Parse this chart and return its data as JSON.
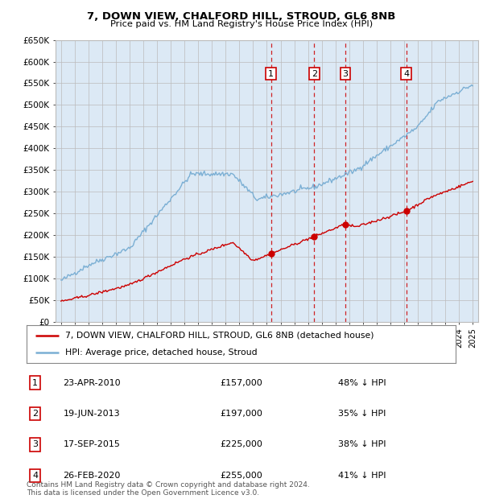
{
  "title": "7, DOWN VIEW, CHALFORD HILL, STROUD, GL6 8NB",
  "subtitle": "Price paid vs. HM Land Registry's House Price Index (HPI)",
  "ylim": [
    0,
    650000
  ],
  "yticks": [
    0,
    50000,
    100000,
    150000,
    200000,
    250000,
    300000,
    350000,
    400000,
    450000,
    500000,
    550000,
    600000,
    650000
  ],
  "ytick_labels": [
    "£0",
    "£50K",
    "£100K",
    "£150K",
    "£200K",
    "£250K",
    "£300K",
    "£350K",
    "£400K",
    "£450K",
    "£500K",
    "£550K",
    "£600K",
    "£650K"
  ],
  "xlim_start": 1994.6,
  "xlim_end": 2025.4,
  "sales": [
    {
      "num": 1,
      "date": "23-APR-2010",
      "year": 2010.3,
      "price": 157000,
      "pct": "48%"
    },
    {
      "num": 2,
      "date": "19-JUN-2013",
      "year": 2013.46,
      "price": 197000,
      "pct": "35%"
    },
    {
      "num": 3,
      "date": "17-SEP-2015",
      "year": 2015.71,
      "price": 225000,
      "pct": "38%"
    },
    {
      "num": 4,
      "date": "26-FEB-2020",
      "year": 2020.15,
      "price": 255000,
      "pct": "41%"
    }
  ],
  "legend_line1": "7, DOWN VIEW, CHALFORD HILL, STROUD, GL6 8NB (detached house)",
  "legend_line2": "HPI: Average price, detached house, Stroud",
  "footer1": "Contains HM Land Registry data © Crown copyright and database right 2024.",
  "footer2": "This data is licensed under the Open Government Licence v3.0.",
  "red_color": "#cc0000",
  "blue_color": "#7bafd4",
  "bg_color": "#dce9f5",
  "grid_color": "#bbbbbb",
  "table_rows": [
    {
      "num": 1,
      "date": "23-APR-2010",
      "price": "£157,000",
      "pct": "48% ↓ HPI"
    },
    {
      "num": 2,
      "date": "19-JUN-2013",
      "price": "£197,000",
      "pct": "35% ↓ HPI"
    },
    {
      "num": 3,
      "date": "17-SEP-2015",
      "price": "£225,000",
      "pct": "38% ↓ HPI"
    },
    {
      "num": 4,
      "date": "26-FEB-2020",
      "price": "£255,000",
      "pct": "41% ↓ HPI"
    }
  ]
}
